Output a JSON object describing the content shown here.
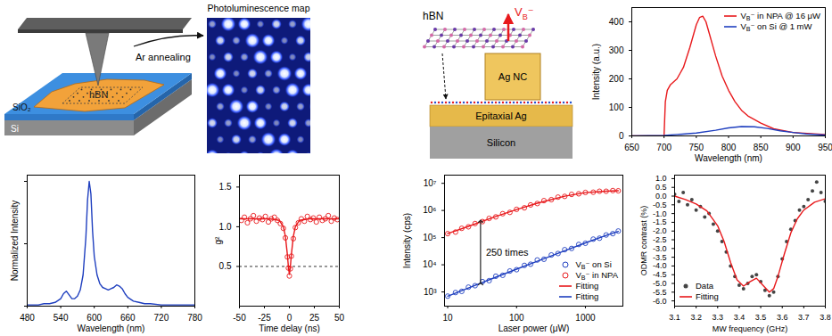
{
  "chart_data": [
    {
      "type": "line",
      "xlabel": "Wavelength (nm)",
      "ylabel": "Normalized Intensity",
      "color": "#1f3fbf",
      "tick_labels": "x",
      "x": [
        480,
        490,
        500,
        510,
        520,
        530,
        540,
        545,
        550,
        555,
        560,
        565,
        570,
        575,
        580,
        585,
        588,
        591,
        594,
        597,
        600,
        605,
        610,
        615,
        620,
        625,
        630,
        635,
        640,
        645,
        650,
        655,
        660,
        670,
        680,
        690,
        700,
        720,
        740,
        760,
        780
      ],
      "values": [
        0.01,
        0.01,
        0.01,
        0.02,
        0.02,
        0.03,
        0.06,
        0.1,
        0.12,
        0.09,
        0.06,
        0.06,
        0.08,
        0.13,
        0.25,
        0.55,
        0.85,
        1.0,
        0.9,
        0.6,
        0.4,
        0.25,
        0.18,
        0.15,
        0.14,
        0.13,
        0.14,
        0.15,
        0.17,
        0.16,
        0.14,
        0.1,
        0.07,
        0.04,
        0.03,
        0.02,
        0.02,
        0.01,
        0.01,
        0.01,
        0.01
      ],
      "xlim": [
        480,
        780
      ],
      "xticks": [
        480,
        540,
        600,
        660,
        720,
        780
      ],
      "ylim": [
        0,
        1.05
      ],
      "yticks": [
        0,
        0.5,
        1
      ]
    },
    {
      "type": "scatter",
      "xlabel": "Time delay (ns)",
      "ylabel": "g²",
      "series": [
        {
          "type": "scatter",
          "color": "#e8191c",
          "marker": "open_circle",
          "x": [
            -48,
            -45,
            -42,
            -39,
            -36,
            -33,
            -30,
            -27,
            -24,
            -21,
            -18,
            -15,
            -12,
            -9,
            -6,
            -4,
            -2,
            -1,
            0,
            1,
            2,
            4,
            6,
            9,
            12,
            15,
            18,
            21,
            24,
            27,
            30,
            33,
            36,
            39,
            42,
            45,
            48
          ],
          "values": [
            1.08,
            1.12,
            1.05,
            1.1,
            1.14,
            1.07,
            1.11,
            1.09,
            1.13,
            1.06,
            1.1,
            1.12,
            1.08,
            1.04,
            0.98,
            0.86,
            0.62,
            0.48,
            0.38,
            0.47,
            0.63,
            0.85,
            0.99,
            1.05,
            1.1,
            1.07,
            1.13,
            1.09,
            1.11,
            1.06,
            1.12,
            1.08,
            1.1,
            1.14,
            1.07,
            1.11,
            1.09
          ]
        },
        {
          "type": "line",
          "color": "#e8191c",
          "x": [
            -50,
            -20,
            -10,
            -6,
            -4,
            -2,
            -1,
            0,
            1,
            2,
            4,
            6,
            10,
            20,
            50
          ],
          "values": [
            1.1,
            1.1,
            1.08,
            1.0,
            0.88,
            0.65,
            0.5,
            0.4,
            0.5,
            0.65,
            0.88,
            1.0,
            1.08,
            1.1,
            1.1
          ]
        }
      ],
      "threshold": 0.5,
      "xlim": [
        -50,
        50
      ],
      "xticks": [
        -50,
        -25,
        0,
        25,
        50
      ],
      "ylim": [
        0,
        1.65
      ],
      "yticks": [
        0.5,
        {
          "value": 1,
          "label": "1.0"
        },
        1.5
      ]
    },
    {
      "type": "line",
      "xlabel": "Wavelength (nm)",
      "ylabel": "Intensity (a.u.)",
      "legend": "upper right",
      "series": [
        {
          "name": "VB⁻ in NPA @ 16 μW",
          "color": "#e8191c",
          "type": "line",
          "x": [
            650,
            700,
            702,
            705,
            710,
            720,
            730,
            740,
            750,
            755,
            760,
            765,
            770,
            780,
            790,
            800,
            810,
            820,
            830,
            850,
            870,
            900,
            950
          ],
          "values": [
            0,
            0,
            120,
            160,
            180,
            200,
            240,
            310,
            390,
            415,
            420,
            400,
            360,
            280,
            210,
            160,
            120,
            90,
            70,
            45,
            25,
            12,
            5
          ]
        },
        {
          "name": "VB⁻ on Si @ 1 mW",
          "color": "#1f3fbf",
          "type": "line",
          "x": [
            650,
            700,
            720,
            750,
            780,
            800,
            820,
            840,
            860,
            880,
            900,
            920,
            950
          ],
          "values": [
            0,
            2,
            5,
            10,
            20,
            28,
            33,
            32,
            26,
            18,
            12,
            7,
            3
          ]
        }
      ],
      "xlim": [
        650,
        950
      ],
      "xticks": [
        650,
        700,
        750,
        800,
        850,
        900,
        950
      ],
      "ylim": [
        0,
        450
      ],
      "yticks": [
        0,
        100,
        200,
        300,
        400
      ]
    },
    {
      "type": "scatter",
      "xlabel": "Laser power (μW)",
      "ylabel": "Intensity (cps)",
      "log": true,
      "legend": "lower right",
      "series": [
        {
          "name": "VB⁻ on Si",
          "type": "scatter",
          "color": "#1f3fbf",
          "marker": "open_circle",
          "x": [
            10,
            13,
            16,
            20,
            25,
            32,
            40,
            50,
            63,
            80,
            100,
            130,
            160,
            200,
            250,
            320,
            400,
            500,
            630,
            800,
            1000,
            1300,
            1600,
            2000,
            2500,
            3000
          ],
          "values": [
            700,
            950,
            1050,
            1500,
            1700,
            2400,
            2600,
            3800,
            4100,
            5900,
            6600,
            9500,
            10500,
            15000,
            16000,
            23000,
            26000,
            36000,
            40000,
            56000,
            62000,
            88000,
            95000,
            125000,
            140000,
            175000
          ]
        },
        {
          "name": "VB⁻ in NPA",
          "type": "scatter",
          "color": "#e8191c",
          "marker": "open_circle",
          "x": [
            10,
            13,
            16,
            20,
            25,
            32,
            40,
            50,
            63,
            80,
            100,
            130,
            160,
            200,
            250,
            320,
            400,
            500,
            630,
            800,
            1000,
            1300,
            1600,
            2000,
            2500,
            3000
          ],
          "values": [
            140000,
            160000,
            220000,
            250000,
            330000,
            390000,
            510000,
            580000,
            760000,
            850000,
            1100000,
            1250000,
            1600000,
            1800000,
            2300000,
            2500000,
            3100000,
            3300000,
            3900000,
            4100000,
            4600000,
            4700000,
            5100000,
            5100000,
            5400000,
            5300000
          ]
        },
        {
          "name": "Fitting",
          "type": "line",
          "color": "#e8191c",
          "x": [
            10,
            20,
            50,
            100,
            200,
            500,
            1000,
            2000,
            3000
          ],
          "values": [
            140000,
            260000,
            600000,
            1080000,
            1850000,
            3350000,
            4550000,
            5150000,
            5350000
          ]
        },
        {
          "name": "Fitting",
          "type": "line",
          "color": "#1f3fbf",
          "x": [
            10,
            20,
            50,
            100,
            200,
            500,
            1000,
            2000,
            3000
          ],
          "values": [
            700,
            1400,
            3500,
            6900,
            13500,
            33000,
            64000,
            120000,
            170000
          ]
        }
      ],
      "annotation": {
        "text": "250 times",
        "x": 30,
        "y1": 2000,
        "y2": 400000
      },
      "xlim": [
        9,
        3500
      ],
      "xticks": [
        10,
        100,
        1000
      ],
      "ylim": [
        300,
        20000000
      ],
      "yticks": [
        {
          "value": 1000,
          "label": "10³"
        },
        {
          "value": 10000,
          "label": "10⁴"
        },
        {
          "value": 100000,
          "label": "10⁵"
        },
        {
          "value": 1000000,
          "label": "10⁶"
        },
        {
          "value": 10000000,
          "label": "10⁷"
        }
      ]
    },
    {
      "type": "scatter",
      "xlabel": "MW frequency (GHz)",
      "ylabel": "ODMR contrast (%)",
      "legend": "lower left",
      "series": [
        {
          "name": "Data",
          "type": "scatter",
          "color": "#444444",
          "marker": "circle",
          "x": [
            3.1,
            3.12,
            3.14,
            3.16,
            3.18,
            3.2,
            3.22,
            3.24,
            3.26,
            3.28,
            3.3,
            3.32,
            3.34,
            3.36,
            3.38,
            3.4,
            3.42,
            3.44,
            3.46,
            3.48,
            3.5,
            3.52,
            3.54,
            3.56,
            3.58,
            3.6,
            3.62,
            3.64,
            3.66,
            3.68,
            3.7,
            3.72,
            3.74,
            3.76,
            3.78,
            3.8
          ],
          "values": [
            0.1,
            -0.3,
            0.2,
            -0.5,
            -0.2,
            -0.8,
            -0.6,
            -1.2,
            -1.0,
            -1.6,
            -2.0,
            -2.6,
            -3.2,
            -4.0,
            -4.6,
            -5.1,
            -5.3,
            -5.0,
            -4.6,
            -4.5,
            -4.9,
            -5.4,
            -5.7,
            -5.5,
            -4.6,
            -3.6,
            -2.6,
            -1.9,
            -1.4,
            -0.8,
            -0.6,
            -0.2,
            0.3,
            0.8,
            0.2,
            -0.3
          ]
        },
        {
          "name": "Fitting",
          "type": "line",
          "color": "#e8191c",
          "x": [
            3.1,
            3.15,
            3.2,
            3.25,
            3.3,
            3.33,
            3.36,
            3.39,
            3.42,
            3.45,
            3.48,
            3.51,
            3.54,
            3.56,
            3.58,
            3.61,
            3.64,
            3.67,
            3.7,
            3.75,
            3.8
          ],
          "values": [
            0.0,
            -0.2,
            -0.45,
            -0.85,
            -1.7,
            -2.6,
            -3.8,
            -4.8,
            -5.15,
            -4.9,
            -4.7,
            -5.1,
            -5.5,
            -5.3,
            -4.6,
            -3.3,
            -2.1,
            -1.3,
            -0.8,
            -0.35,
            -0.15
          ]
        }
      ],
      "xlim": [
        3.1,
        3.8
      ],
      "xticks": [
        3.1,
        3.2,
        3.3,
        3.4,
        3.5,
        3.6,
        3.7,
        3.8
      ],
      "ylim": [
        -6.3,
        1.2
      ],
      "yticks": [
        {
          "value": 1,
          "label": "1.0"
        },
        0.5,
        {
          "value": 0,
          "label": "0.0"
        },
        -0.5,
        {
          "value": -1,
          "label": "-1.0"
        },
        -1.5,
        {
          "value": -2,
          "label": "-2.0"
        },
        -2.5,
        {
          "value": -3,
          "label": "-3.0"
        },
        -3.5,
        {
          "value": -4,
          "label": "-4.0"
        },
        -4.5,
        {
          "value": -5,
          "label": "-5.0"
        },
        -5.5,
        {
          "value": -6,
          "label": "-6.0"
        }
      ]
    }
  ],
  "schematics": {
    "sample": {
      "flake": "hBN",
      "layer": "SiO₂",
      "base": "Si",
      "arrow_label": "Ar annealing"
    },
    "pl_map": {
      "title": "Photoluminescence map"
    },
    "nanocavity": {
      "material": "hBN",
      "defect": "VB⁻",
      "nanocube": "Ag NC",
      "film": "Epitaxial Ag",
      "base": "Silicon"
    }
  }
}
